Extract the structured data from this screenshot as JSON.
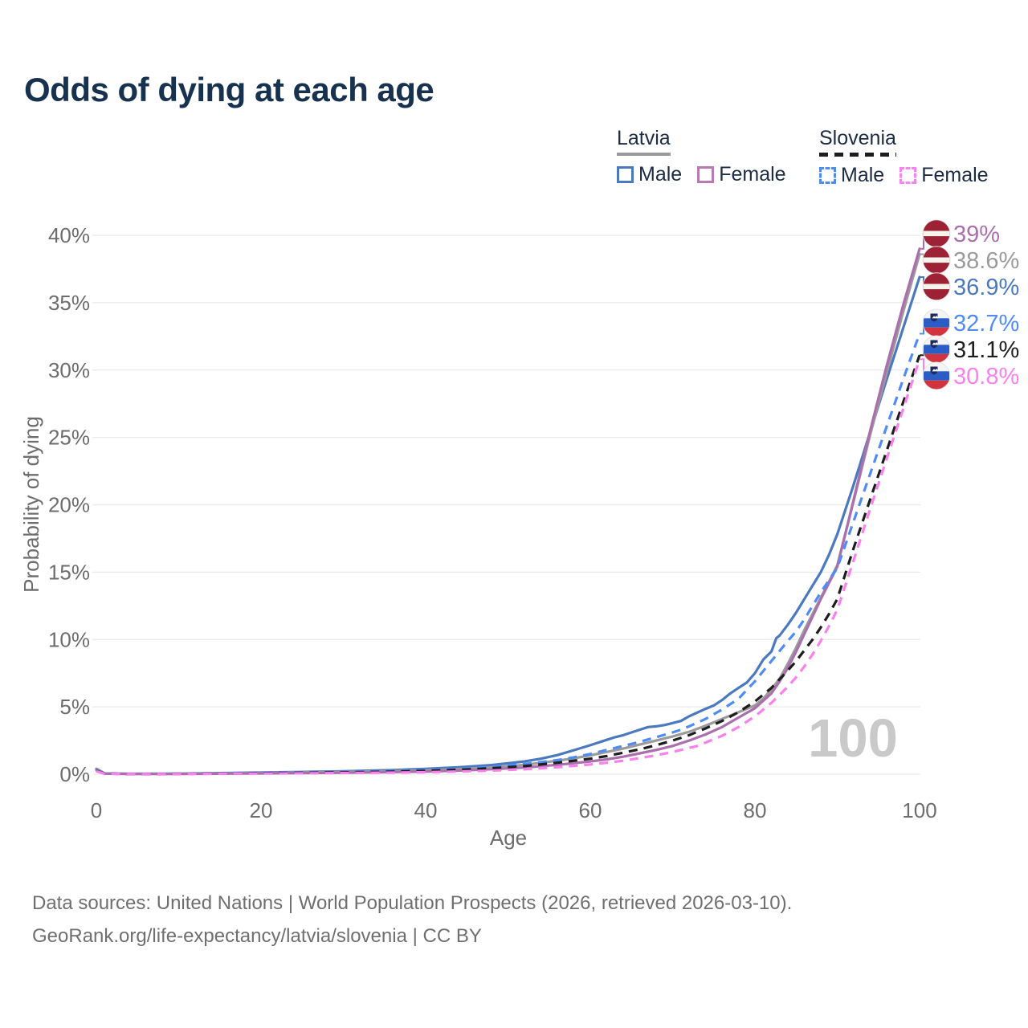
{
  "title": "Odds of dying at each age",
  "legend": {
    "groups": [
      {
        "name": "Latvia",
        "style": "solid",
        "underline_color": "#9b9b9b",
        "entries": [
          {
            "label": "Male",
            "color": "#4a79c0"
          },
          {
            "label": "Female",
            "color": "#bb79b4"
          }
        ]
      },
      {
        "name": "Slovenia",
        "style": "dashed",
        "underline_color": "#1d1d1d",
        "entries": [
          {
            "label": "Male",
            "color": "#4f8cf7"
          },
          {
            "label": "Female",
            "color": "#fc82f0"
          }
        ]
      }
    ]
  },
  "chart_data": {
    "type": "line",
    "title": "Odds of dying at each age",
    "xlabel": "Age",
    "ylabel": "Probability of dying",
    "xlim": [
      0,
      100
    ],
    "ylim": [
      0,
      40
    ],
    "grid": "horizontal",
    "legend_position": "top-right",
    "watermark": "100",
    "x_ticks": [
      {
        "v": 0,
        "label": "0"
      },
      {
        "v": 20,
        "label": "20"
      },
      {
        "v": 40,
        "label": "40"
      },
      {
        "v": 60,
        "label": "60"
      },
      {
        "v": 80,
        "label": "80"
      },
      {
        "v": 100,
        "label": "100"
      }
    ],
    "y_ticks": [
      {
        "v": 0,
        "label": "0%"
      },
      {
        "v": 5,
        "label": "5%"
      },
      {
        "v": 10,
        "label": "10%"
      },
      {
        "v": 15,
        "label": "15%"
      },
      {
        "v": 20,
        "label": "20%"
      },
      {
        "v": 25,
        "label": "25%"
      },
      {
        "v": 30,
        "label": "30%"
      },
      {
        "v": 35,
        "label": "35%"
      },
      {
        "v": 40,
        "label": "40%"
      }
    ],
    "series": [
      {
        "id": "latvia-male",
        "country": "Latvia",
        "sex": "Male",
        "color": "#4a79c0",
        "dash": "solid",
        "flag": "lv",
        "end_value": 36.9,
        "end_label": "36.9%",
        "points": [
          [
            0,
            0.4
          ],
          [
            1,
            0.06
          ],
          [
            4,
            0.03
          ],
          [
            10,
            0.04
          ],
          [
            16,
            0.09
          ],
          [
            20,
            0.13
          ],
          [
            26,
            0.18
          ],
          [
            30,
            0.22
          ],
          [
            36,
            0.31
          ],
          [
            40,
            0.4
          ],
          [
            44,
            0.52
          ],
          [
            48,
            0.68
          ],
          [
            52,
            0.95
          ],
          [
            54,
            1.15
          ],
          [
            56,
            1.42
          ],
          [
            58,
            1.78
          ],
          [
            60,
            2.15
          ],
          [
            62,
            2.55
          ],
          [
            63,
            2.75
          ],
          [
            64,
            2.9
          ],
          [
            65,
            3.1
          ],
          [
            66,
            3.3
          ],
          [
            67,
            3.5
          ],
          [
            68,
            3.55
          ],
          [
            69,
            3.65
          ],
          [
            70,
            3.8
          ],
          [
            71,
            3.95
          ],
          [
            72,
            4.3
          ],
          [
            74,
            4.85
          ],
          [
            75,
            5.1
          ],
          [
            76,
            5.5
          ],
          [
            77,
            6.0
          ],
          [
            78,
            6.4
          ],
          [
            79,
            6.8
          ],
          [
            80,
            7.5
          ],
          [
            81,
            8.5
          ],
          [
            82,
            9.1
          ],
          [
            82.6,
            10.1
          ],
          [
            83,
            10.3
          ],
          [
            84,
            11.1
          ],
          [
            85,
            12.0
          ],
          [
            86,
            13.0
          ],
          [
            87,
            14.0
          ],
          [
            88,
            15.0
          ],
          [
            89,
            16.3
          ],
          [
            90,
            17.8
          ],
          [
            92,
            21.5
          ],
          [
            94,
            25.4
          ],
          [
            96,
            29.3
          ],
          [
            98,
            33.1
          ],
          [
            100,
            36.9
          ]
        ]
      },
      {
        "id": "latvia-total",
        "country": "Latvia",
        "sex": "Both",
        "color": "#9b9b9b",
        "dash": "solid",
        "flag": "lv",
        "end_value": 38.6,
        "end_label": "38.6%",
        "points": [
          [
            0,
            0.35
          ],
          [
            1,
            0.05
          ],
          [
            4,
            0.03
          ],
          [
            10,
            0.03
          ],
          [
            16,
            0.06
          ],
          [
            20,
            0.1
          ],
          [
            26,
            0.14
          ],
          [
            30,
            0.17
          ],
          [
            36,
            0.23
          ],
          [
            40,
            0.29
          ],
          [
            44,
            0.38
          ],
          [
            48,
            0.5
          ],
          [
            52,
            0.7
          ],
          [
            56,
            1.0
          ],
          [
            58,
            1.18
          ],
          [
            60,
            1.4
          ],
          [
            62,
            1.65
          ],
          [
            64,
            1.9
          ],
          [
            66,
            2.2
          ],
          [
            68,
            2.5
          ],
          [
            70,
            2.8
          ],
          [
            72,
            3.15
          ],
          [
            74,
            3.6
          ],
          [
            76,
            4.1
          ],
          [
            78,
            4.6
          ],
          [
            80,
            5.1
          ],
          [
            81,
            5.6
          ],
          [
            82,
            6.3
          ],
          [
            83,
            7.1
          ],
          [
            84,
            8.2
          ],
          [
            85,
            9.4
          ],
          [
            86,
            10.7
          ],
          [
            87,
            11.9
          ],
          [
            88,
            13.1
          ],
          [
            89,
            14.3
          ],
          [
            90,
            15.5
          ],
          [
            92,
            20.3
          ],
          [
            94,
            25.2
          ],
          [
            96,
            29.8
          ],
          [
            98,
            34.3
          ],
          [
            100,
            38.6
          ]
        ]
      },
      {
        "id": "latvia-female",
        "country": "Latvia",
        "sex": "Female",
        "color": "#ab6fad",
        "dash": "solid",
        "flag": "lv",
        "end_value": 39.0,
        "end_label": "39%",
        "points": [
          [
            0,
            0.32
          ],
          [
            1,
            0.04
          ],
          [
            4,
            0.02
          ],
          [
            10,
            0.02
          ],
          [
            16,
            0.04
          ],
          [
            20,
            0.06
          ],
          [
            26,
            0.09
          ],
          [
            30,
            0.11
          ],
          [
            36,
            0.16
          ],
          [
            40,
            0.2
          ],
          [
            44,
            0.27
          ],
          [
            48,
            0.37
          ],
          [
            52,
            0.5
          ],
          [
            56,
            0.7
          ],
          [
            60,
            0.95
          ],
          [
            62,
            1.1
          ],
          [
            64,
            1.3
          ],
          [
            66,
            1.55
          ],
          [
            68,
            1.8
          ],
          [
            70,
            2.1
          ],
          [
            72,
            2.5
          ],
          [
            74,
            2.95
          ],
          [
            76,
            3.5
          ],
          [
            78,
            4.2
          ],
          [
            80,
            4.9
          ],
          [
            82,
            6.0
          ],
          [
            83,
            6.9
          ],
          [
            84,
            7.9
          ],
          [
            85,
            9.1
          ],
          [
            86,
            10.4
          ],
          [
            87,
            11.7
          ],
          [
            88,
            13.0
          ],
          [
            89,
            14.2
          ],
          [
            90,
            15.4
          ],
          [
            92,
            20.4
          ],
          [
            94,
            25.5
          ],
          [
            96,
            30.3
          ],
          [
            98,
            34.8
          ],
          [
            100,
            39.0
          ]
        ]
      },
      {
        "id": "slovenia-male",
        "country": "Slovenia",
        "sex": "Male",
        "color": "#4f8cf7",
        "dash": "dashed",
        "flag": "si",
        "end_value": 32.7,
        "end_label": "32.7%",
        "points": [
          [
            0,
            0.28
          ],
          [
            1,
            0.04
          ],
          [
            4,
            0.02
          ],
          [
            10,
            0.03
          ],
          [
            16,
            0.07
          ],
          [
            20,
            0.1
          ],
          [
            26,
            0.14
          ],
          [
            30,
            0.17
          ],
          [
            36,
            0.24
          ],
          [
            40,
            0.31
          ],
          [
            44,
            0.4
          ],
          [
            48,
            0.54
          ],
          [
            52,
            0.76
          ],
          [
            56,
            1.05
          ],
          [
            58,
            1.25
          ],
          [
            60,
            1.5
          ],
          [
            62,
            1.8
          ],
          [
            64,
            2.1
          ],
          [
            66,
            2.4
          ],
          [
            68,
            2.75
          ],
          [
            70,
            3.1
          ],
          [
            71,
            3.3
          ],
          [
            72,
            3.55
          ],
          [
            74,
            4.1
          ],
          [
            76,
            4.8
          ],
          [
            78,
            5.6
          ],
          [
            80,
            6.9
          ],
          [
            82,
            8.4
          ],
          [
            84,
            9.9
          ],
          [
            85,
            10.6
          ],
          [
            86,
            11.5
          ],
          [
            87,
            12.5
          ],
          [
            88,
            13.5
          ],
          [
            89,
            14.4
          ],
          [
            90,
            15.3
          ],
          [
            92,
            18.8
          ],
          [
            94,
            22.3
          ],
          [
            96,
            25.8
          ],
          [
            98,
            29.3
          ],
          [
            100,
            32.7
          ]
        ]
      },
      {
        "id": "slovenia-total",
        "country": "Slovenia",
        "sex": "Both",
        "color": "#1d1d1d",
        "dash": "dashed",
        "flag": "si",
        "end_value": 31.1,
        "end_label": "31.1%",
        "points": [
          [
            0,
            0.25
          ],
          [
            1,
            0.04
          ],
          [
            4,
            0.02
          ],
          [
            10,
            0.03
          ],
          [
            16,
            0.05
          ],
          [
            20,
            0.08
          ],
          [
            26,
            0.11
          ],
          [
            30,
            0.14
          ],
          [
            36,
            0.19
          ],
          [
            40,
            0.25
          ],
          [
            44,
            0.33
          ],
          [
            48,
            0.44
          ],
          [
            52,
            0.6
          ],
          [
            56,
            0.85
          ],
          [
            60,
            1.15
          ],
          [
            62,
            1.35
          ],
          [
            64,
            1.6
          ],
          [
            66,
            1.85
          ],
          [
            68,
            2.15
          ],
          [
            70,
            2.5
          ],
          [
            72,
            2.9
          ],
          [
            74,
            3.4
          ],
          [
            76,
            3.95
          ],
          [
            78,
            4.6
          ],
          [
            80,
            5.4
          ],
          [
            82,
            6.4
          ],
          [
            84,
            7.7
          ],
          [
            85,
            8.4
          ],
          [
            86,
            9.2
          ],
          [
            87,
            10.0
          ],
          [
            88,
            10.9
          ],
          [
            89,
            11.9
          ],
          [
            90,
            13.0
          ],
          [
            92,
            16.8
          ],
          [
            94,
            20.4
          ],
          [
            96,
            24.0
          ],
          [
            98,
            27.6
          ],
          [
            100,
            31.1
          ]
        ]
      },
      {
        "id": "slovenia-female",
        "country": "Slovenia",
        "sex": "Female",
        "color": "#fb80ee",
        "dash": "dashed",
        "flag": "si",
        "end_value": 30.8,
        "end_label": "30.8%",
        "points": [
          [
            0,
            0.22
          ],
          [
            1,
            0.03
          ],
          [
            4,
            0.02
          ],
          [
            10,
            0.02
          ],
          [
            16,
            0.04
          ],
          [
            20,
            0.05
          ],
          [
            26,
            0.07
          ],
          [
            30,
            0.09
          ],
          [
            36,
            0.12
          ],
          [
            40,
            0.15
          ],
          [
            44,
            0.2
          ],
          [
            48,
            0.27
          ],
          [
            52,
            0.37
          ],
          [
            56,
            0.52
          ],
          [
            60,
            0.72
          ],
          [
            62,
            0.85
          ],
          [
            64,
            1.0
          ],
          [
            66,
            1.2
          ],
          [
            68,
            1.4
          ],
          [
            70,
            1.65
          ],
          [
            72,
            1.95
          ],
          [
            73,
            2.1
          ],
          [
            74,
            2.35
          ],
          [
            76,
            2.85
          ],
          [
            78,
            3.5
          ],
          [
            80,
            4.3
          ],
          [
            82,
            5.3
          ],
          [
            84,
            6.5
          ],
          [
            85,
            7.2
          ],
          [
            86,
            8.0
          ],
          [
            87,
            8.9
          ],
          [
            88,
            9.9
          ],
          [
            89,
            11.0
          ],
          [
            90,
            12.2
          ],
          [
            92,
            15.9
          ],
          [
            94,
            19.7
          ],
          [
            96,
            23.4
          ],
          [
            98,
            27.1
          ],
          [
            100,
            30.8
          ]
        ]
      }
    ]
  },
  "colors": {
    "title": "#17324f",
    "tick_text": "#6d6d6d",
    "gridline": "#eaeaea",
    "watermark": "#c9c9c9",
    "latvia_flag_red": "#9d2235",
    "slovenia_flag_blue": "#2b5dc6",
    "slovenia_flag_red": "#d2343e"
  },
  "footer": {
    "line1": "Data sources: United Nations | World Population Prospects (2026, retrieved 2026-03-10).",
    "line2": "GeoRank.org/life-expectancy/latvia/slovenia | CC BY"
  }
}
